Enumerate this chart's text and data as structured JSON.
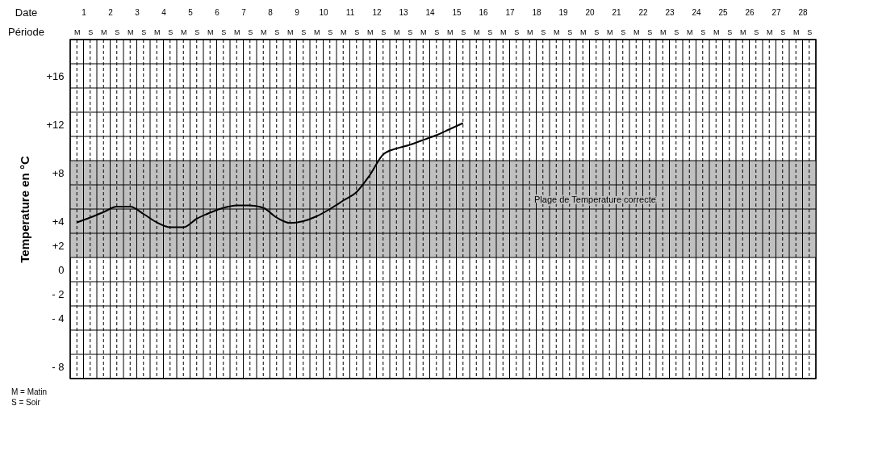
{
  "chart_data": {
    "type": "line",
    "xlabel": "Période",
    "x2label": "Date",
    "ylabel": "Temperature en °C",
    "categories": [
      "M",
      "S",
      "M",
      "S",
      "M",
      "S",
      "M",
      "S",
      "M",
      "S",
      "M",
      "S",
      "M",
      "S",
      "M",
      "S",
      "M",
      "S",
      "M",
      "S",
      "M",
      "S",
      "M",
      "S",
      "M",
      "S",
      "M",
      "S",
      "M",
      "S",
      "M",
      "S",
      "M",
      "S",
      "M",
      "S",
      "M",
      "S",
      "M",
      "S",
      "M",
      "S",
      "M",
      "S",
      "M",
      "S",
      "M",
      "S",
      "M",
      "S",
      "M",
      "S",
      "M",
      "S",
      "M",
      "S"
    ],
    "series": [
      {
        "color": "#000000",
        "values": [
          3.9,
          4.3,
          4.75,
          5.2,
          5.2,
          4.6,
          3.9,
          3.5,
          3.5,
          4.2,
          4.7,
          5.1,
          5.3,
          5.3,
          5.1,
          4.3,
          3.85,
          4.0,
          4.4,
          5.0,
          5.7,
          6.4,
          7.8,
          9.5,
          10.0,
          10.3,
          10.7,
          11.1,
          11.6,
          12.1,
          null,
          null,
          null,
          null,
          null,
          null,
          null,
          null,
          null,
          null,
          null,
          null,
          null,
          null,
          null,
          null,
          null,
          null,
          null,
          null,
          null,
          null,
          null,
          null,
          null,
          null
        ]
      }
    ],
    "x2lim": [
      0.5,
      28.5
    ],
    "x2ticks": [
      {
        "value": 0.5,
        "label": null
      },
      1,
      {
        "value": 1.5,
        "label": null
      },
      2,
      {
        "value": 2.5,
        "label": null
      },
      3,
      {
        "value": 3.5,
        "label": null
      },
      4,
      {
        "value": 4.5,
        "label": null
      },
      5,
      {
        "value": 5.5,
        "label": null
      },
      6,
      {
        "value": 6.5,
        "label": null
      },
      7,
      {
        "value": 7.5,
        "label": null
      },
      8,
      {
        "value": 8.5,
        "label": null
      },
      9,
      {
        "value": 9.5,
        "label": null
      },
      10,
      {
        "value": 10.5,
        "label": null
      },
      11,
      {
        "value": 11.5,
        "label": null
      },
      12,
      {
        "value": 12.5,
        "label": null
      },
      13,
      {
        "value": 13.5,
        "label": null
      },
      14,
      {
        "value": 14.5,
        "label": null
      },
      15,
      {
        "value": 15.5,
        "label": null
      },
      16,
      {
        "value": 16.5,
        "label": null
      },
      17,
      {
        "value": 17.5,
        "label": null
      },
      18,
      {
        "value": 18.5,
        "label": null
      },
      19,
      {
        "value": 19.5,
        "label": null
      },
      20,
      {
        "value": 20.5,
        "label": null
      },
      21,
      {
        "value": 21.5,
        "label": null
      },
      22,
      {
        "value": 22.5,
        "label": null
      },
      23,
      {
        "value": 23.5,
        "label": null
      },
      24,
      {
        "value": 24.5,
        "label": null
      },
      25,
      {
        "value": 25.5,
        "label": null
      },
      26,
      {
        "value": 26.5,
        "label": null
      },
      27,
      {
        "value": 27.5,
        "label": null
      },
      28,
      {
        "value": 28.5,
        "label": null
      }
    ],
    "ylim": [
      -9,
      19
    ],
    "yticks": [
      {
        "value": -9,
        "label": null
      },
      {
        "value": -8,
        "label": "- 8"
      },
      {
        "value": -7,
        "label": null
      },
      {
        "value": -5,
        "label": null
      },
      {
        "value": -4,
        "label": "- 4"
      },
      {
        "value": -3,
        "label": null
      },
      {
        "value": -2,
        "label": "- 2"
      },
      {
        "value": -1,
        "label": null
      },
      0,
      {
        "value": 1,
        "label": null
      },
      {
        "value": 2,
        "label": "+2"
      },
      {
        "value": 3,
        "label": null
      },
      {
        "value": 4,
        "label": "+4"
      },
      {
        "value": 5,
        "label": null
      },
      {
        "value": 7,
        "label": null
      },
      {
        "value": 8,
        "label": "+8"
      },
      {
        "value": 9,
        "label": null
      },
      {
        "value": 11,
        "label": null
      },
      {
        "value": 12,
        "label": "+12"
      },
      {
        "value": 13,
        "label": null
      },
      {
        "value": 15,
        "label": null
      },
      {
        "value": 16,
        "label": "+16"
      },
      {
        "value": 17,
        "label": null
      },
      {
        "value": 19,
        "label": null
      }
    ],
    "bands": [
      {
        "axis": "y",
        "from": 1,
        "to": 9,
        "label": "Plage de Temperature correcte",
        "color": "#c0c0c0"
      }
    ],
    "grid": true,
    "annotations": [
      "M = Matin",
      "S = Soir"
    ]
  }
}
